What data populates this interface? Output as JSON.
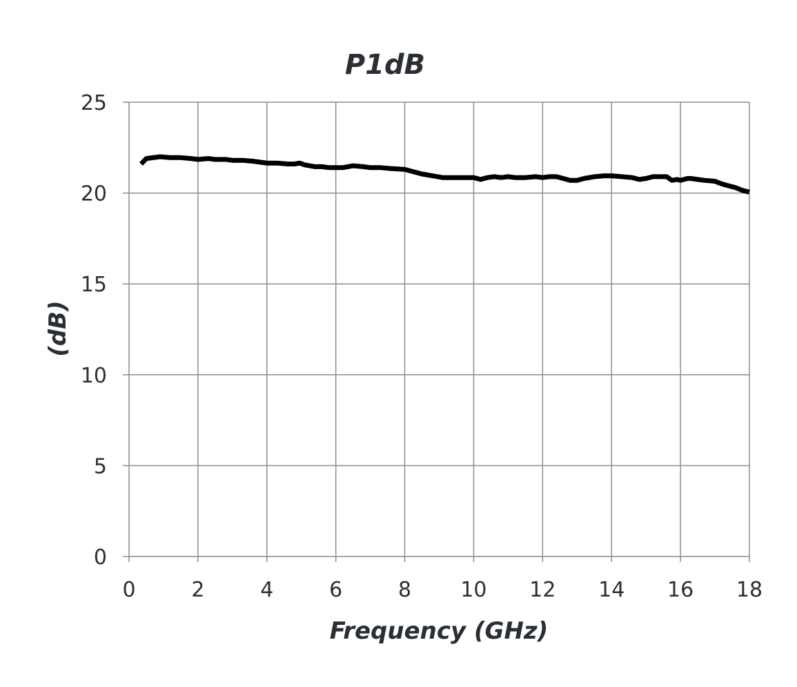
{
  "chart_data": {
    "type": "line",
    "title": "P1dB",
    "xlabel": "Frequency (GHz)",
    "ylabel": "(dB)",
    "xlim": [
      0,
      18
    ],
    "ylim": [
      0,
      25
    ],
    "xticks": [
      0,
      2,
      4,
      6,
      8,
      10,
      12,
      14,
      16,
      18
    ],
    "yticks": [
      0,
      5,
      10,
      15,
      20,
      25
    ],
    "xtick_labels": [
      "0",
      "2",
      "4",
      "6",
      "8",
      "10",
      "12",
      "14",
      "16",
      "18"
    ],
    "ytick_labels": [
      "0",
      "5",
      "10",
      "15",
      "20",
      "25"
    ],
    "grid": true,
    "legend": "none",
    "series": [
      {
        "color": "#000000",
        "x": [
          0.35,
          0.5,
          0.9,
          1.2,
          1.5,
          1.8,
          2.0,
          2.3,
          2.5,
          2.8,
          3.0,
          3.3,
          3.6,
          4.0,
          4.3,
          4.6,
          4.8,
          4.95,
          5.1,
          5.4,
          5.6,
          5.8,
          6.0,
          6.2,
          6.5,
          6.8,
          7.0,
          7.3,
          7.6,
          8.0,
          8.2,
          8.5,
          8.8,
          9.1,
          9.4,
          9.7,
          10.0,
          10.2,
          10.4,
          10.6,
          10.8,
          11.0,
          11.2,
          11.5,
          11.8,
          12.0,
          12.2,
          12.4,
          12.6,
          12.8,
          13.0,
          13.2,
          13.5,
          13.8,
          14.0,
          14.3,
          14.6,
          14.8,
          15.0,
          15.2,
          15.4,
          15.6,
          15.75,
          15.9,
          16.0,
          16.2,
          16.3,
          16.5,
          16.7,
          17.0,
          17.2,
          17.4,
          17.6,
          17.8,
          18.0
        ],
        "y": [
          21.6,
          21.9,
          22.0,
          21.95,
          21.95,
          21.9,
          21.85,
          21.9,
          21.85,
          21.85,
          21.8,
          21.8,
          21.75,
          21.65,
          21.65,
          21.6,
          21.6,
          21.65,
          21.55,
          21.45,
          21.45,
          21.4,
          21.4,
          21.4,
          21.5,
          21.45,
          21.4,
          21.4,
          21.35,
          21.3,
          21.2,
          21.05,
          20.95,
          20.85,
          20.85,
          20.85,
          20.85,
          20.75,
          20.85,
          20.9,
          20.85,
          20.9,
          20.85,
          20.85,
          20.9,
          20.85,
          20.9,
          20.9,
          20.8,
          20.7,
          20.7,
          20.8,
          20.9,
          20.95,
          20.95,
          20.9,
          20.85,
          20.75,
          20.8,
          20.9,
          20.9,
          20.9,
          20.7,
          20.75,
          20.7,
          20.8,
          20.8,
          20.75,
          20.7,
          20.65,
          20.5,
          20.4,
          20.3,
          20.15,
          20.05
        ]
      }
    ]
  }
}
